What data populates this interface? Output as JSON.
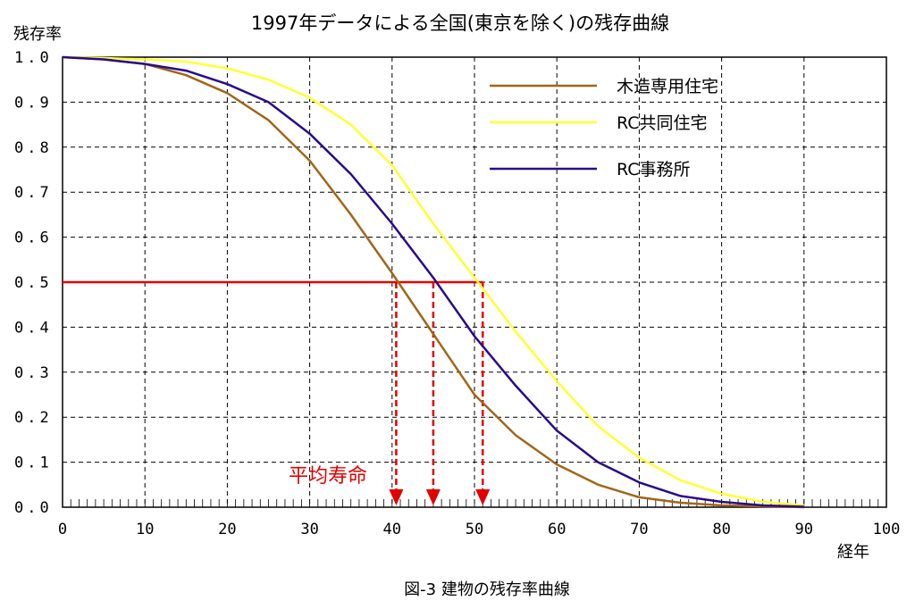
{
  "chart_data": {
    "type": "line",
    "title": "1997年データによる全国(東京を除く)の残存曲線",
    "ylabel": "残存率",
    "xlabel": "経年",
    "caption": "図-3 建物の残存率曲線",
    "xlim": [
      0,
      100
    ],
    "ylim": [
      0,
      1.0
    ],
    "x_ticks": [
      0,
      10,
      20,
      30,
      40,
      50,
      60,
      70,
      80,
      90,
      100
    ],
    "y_ticks": [
      "0.0",
      "0.1",
      "0.2",
      "0.3",
      "0.4",
      "0.5",
      "0.6",
      "0.7",
      "0.8",
      "0.9",
      "1.0"
    ],
    "grid": true,
    "legend_position": "top-right",
    "series": [
      {
        "name": "木造専用住宅",
        "color": "#a0661a",
        "x": [
          0,
          5,
          10,
          15,
          20,
          25,
          30,
          35,
          40,
          45,
          50,
          55,
          60,
          65,
          70,
          75,
          80,
          85,
          90
        ],
        "y": [
          1.0,
          0.995,
          0.985,
          0.96,
          0.92,
          0.86,
          0.77,
          0.65,
          0.52,
          0.385,
          0.25,
          0.16,
          0.095,
          0.05,
          0.022,
          0.01,
          0.004,
          0.002,
          0.0
        ]
      },
      {
        "name": "RC共同住宅",
        "color": "#ffff33",
        "x": [
          0,
          5,
          10,
          15,
          20,
          25,
          30,
          35,
          40,
          45,
          50,
          55,
          60,
          65,
          70,
          75,
          80,
          85,
          90
        ],
        "y": [
          1.0,
          0.998,
          0.995,
          0.99,
          0.975,
          0.95,
          0.91,
          0.85,
          0.76,
          0.63,
          0.51,
          0.39,
          0.28,
          0.18,
          0.11,
          0.06,
          0.03,
          0.012,
          0.004
        ]
      },
      {
        "name": "RC事務所",
        "color": "#2a0a8a",
        "x": [
          0,
          5,
          10,
          15,
          20,
          25,
          30,
          35,
          40,
          45,
          50,
          55,
          60,
          65,
          70,
          75,
          80,
          85,
          90
        ],
        "y": [
          1.0,
          0.995,
          0.985,
          0.97,
          0.94,
          0.9,
          0.83,
          0.74,
          0.63,
          0.51,
          0.38,
          0.27,
          0.17,
          0.1,
          0.055,
          0.025,
          0.012,
          0.004,
          0.001
        ]
      }
    ],
    "reference_line": {
      "y": 0.5,
      "color": "#e00000",
      "x_end": 51
    },
    "mean_lifetime_markers": [
      40.5,
      45,
      51
    ],
    "annotation": {
      "text": "平均寿命",
      "color": "#e00000"
    }
  }
}
